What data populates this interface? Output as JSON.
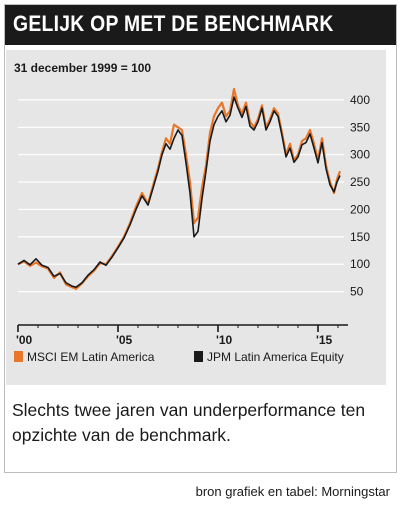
{
  "header": {
    "title": "GELIJK OP MET DE BENCHMARK"
  },
  "caption": "Slechts twee jaren van underperformance ten opzichte van de benchmark.",
  "source": "bron grafiek en tabel: Morningstar",
  "colors": {
    "series_a": "#e8772a",
    "series_b": "#1a1a1a",
    "panel": "#e6e6e6",
    "grid": "#ffffff"
  },
  "chart_data": {
    "type": "line",
    "subtitle": "31 december 1999 = 100",
    "ylim": [
      0,
      440
    ],
    "xlim": [
      2000,
      2016.3
    ],
    "yticks": [
      50,
      100,
      150,
      200,
      250,
      300,
      350,
      400
    ],
    "xticks": [
      {
        "value": 2000,
        "label": "'00"
      },
      {
        "value": 2005,
        "label": "'05"
      },
      {
        "value": 2010,
        "label": "'10"
      },
      {
        "value": 2015,
        "label": "'15"
      }
    ],
    "grid": true,
    "legend_position": "bottom",
    "series": [
      {
        "name": "MSCI EM Latin America",
        "x": [
          2000.0,
          2000.3,
          2000.6,
          2000.9,
          2001.2,
          2001.5,
          2001.8,
          2002.1,
          2002.4,
          2002.7,
          2002.9,
          2003.2,
          2003.5,
          2003.8,
          2004.1,
          2004.4,
          2004.7,
          2005.0,
          2005.3,
          2005.6,
          2005.9,
          2006.2,
          2006.5,
          2006.8,
          2007.0,
          2007.2,
          2007.4,
          2007.6,
          2007.8,
          2008.0,
          2008.2,
          2008.4,
          2008.6,
          2008.8,
          2009.0,
          2009.2,
          2009.4,
          2009.6,
          2009.8,
          2010.0,
          2010.2,
          2010.4,
          2010.6,
          2010.8,
          2011.0,
          2011.2,
          2011.4,
          2011.6,
          2011.8,
          2012.0,
          2012.2,
          2012.4,
          2012.6,
          2012.8,
          2013.0,
          2013.2,
          2013.4,
          2013.6,
          2013.8,
          2014.0,
          2014.2,
          2014.4,
          2014.6,
          2014.8,
          2015.0,
          2015.2,
          2015.4,
          2015.6,
          2015.8,
          2015.95,
          2016.1
        ],
        "values": [
          100,
          105,
          97,
          103,
          96,
          92,
          75,
          85,
          63,
          58,
          55,
          65,
          78,
          88,
          102,
          100,
          115,
          132,
          150,
          175,
          205,
          230,
          210,
          250,
          275,
          305,
          330,
          320,
          355,
          350,
          345,
          300,
          250,
          175,
          185,
          240,
          280,
          340,
          370,
          385,
          395,
          370,
          380,
          420,
          390,
          375,
          395,
          360,
          350,
          365,
          390,
          350,
          365,
          385,
          375,
          340,
          300,
          320,
          290,
          300,
          325,
          330,
          345,
          320,
          290,
          330,
          280,
          250,
          230,
          255,
          270
        ]
      },
      {
        "name": "JPM Latin America Equity",
        "x": [
          2000.0,
          2000.3,
          2000.6,
          2000.9,
          2001.2,
          2001.5,
          2001.8,
          2002.1,
          2002.4,
          2002.7,
          2002.9,
          2003.2,
          2003.5,
          2003.8,
          2004.1,
          2004.4,
          2004.7,
          2005.0,
          2005.3,
          2005.6,
          2005.9,
          2006.2,
          2006.5,
          2006.8,
          2007.0,
          2007.2,
          2007.4,
          2007.6,
          2007.8,
          2008.0,
          2008.2,
          2008.4,
          2008.6,
          2008.8,
          2009.0,
          2009.2,
          2009.4,
          2009.6,
          2009.8,
          2010.0,
          2010.2,
          2010.4,
          2010.6,
          2010.8,
          2011.0,
          2011.2,
          2011.4,
          2011.6,
          2011.8,
          2012.0,
          2012.2,
          2012.4,
          2012.6,
          2012.8,
          2013.0,
          2013.2,
          2013.4,
          2013.6,
          2013.8,
          2014.0,
          2014.2,
          2014.4,
          2014.6,
          2014.8,
          2015.0,
          2015.2,
          2015.4,
          2015.6,
          2015.8,
          2015.95,
          2016.1
        ],
        "values": [
          100,
          107,
          99,
          110,
          98,
          94,
          78,
          83,
          66,
          60,
          58,
          66,
          80,
          90,
          104,
          98,
          113,
          130,
          148,
          172,
          200,
          225,
          208,
          245,
          270,
          300,
          320,
          310,
          330,
          345,
          335,
          285,
          230,
          150,
          160,
          220,
          270,
          325,
          355,
          370,
          380,
          360,
          372,
          405,
          385,
          368,
          388,
          352,
          345,
          360,
          385,
          345,
          360,
          380,
          370,
          335,
          296,
          312,
          286,
          296,
          318,
          322,
          338,
          312,
          285,
          322,
          275,
          245,
          232,
          250,
          262
        ]
      }
    ]
  }
}
